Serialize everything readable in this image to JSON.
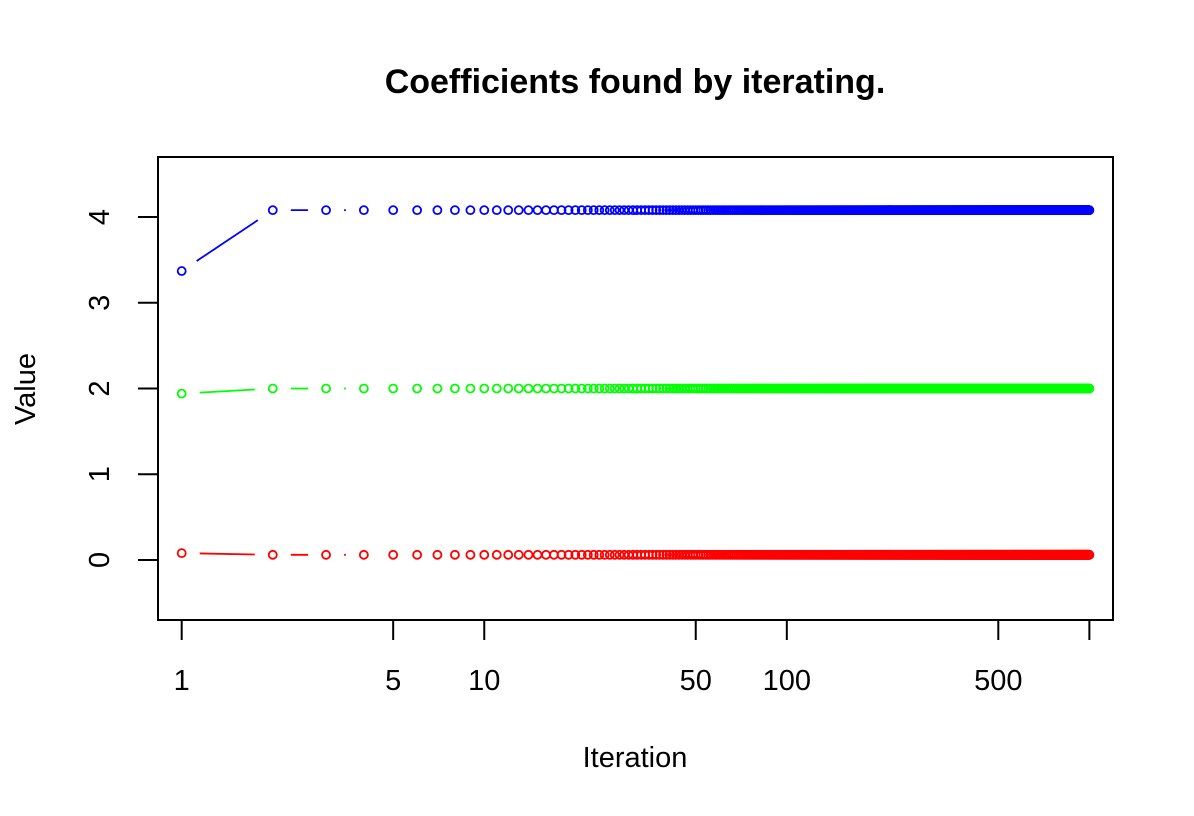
{
  "chart_data": {
    "type": "line",
    "title": "Coefficients found by iterating.",
    "xlabel": "Iteration",
    "ylabel": "Value",
    "x_scale": "log",
    "xlim": [
      0.835,
      1197
    ],
    "ylim": [
      -0.7,
      4.7
    ],
    "x_ticks": [
      1,
      5,
      10,
      50,
      100,
      500,
      1000
    ],
    "x_tick_labels": [
      "1",
      "5",
      "10",
      "50",
      "100",
      "500",
      ""
    ],
    "y_ticks": [
      0,
      1,
      2,
      3,
      4
    ],
    "y_tick_labels": [
      "0",
      "1",
      "2",
      "3",
      "4"
    ],
    "x_range": [
      1,
      1000
    ],
    "marker": "open-circle",
    "line_style": "dashed segments between points",
    "grid": false,
    "legend": "none",
    "series": [
      {
        "color": "#0000ff",
        "first_value": 3.37,
        "converged_value": 4.08
      },
      {
        "color": "#00ff00",
        "first_value": 1.94,
        "converged_value": 2.0
      },
      {
        "color": "#ff0000",
        "first_value": 0.08,
        "converged_value": 0.06
      }
    ]
  }
}
